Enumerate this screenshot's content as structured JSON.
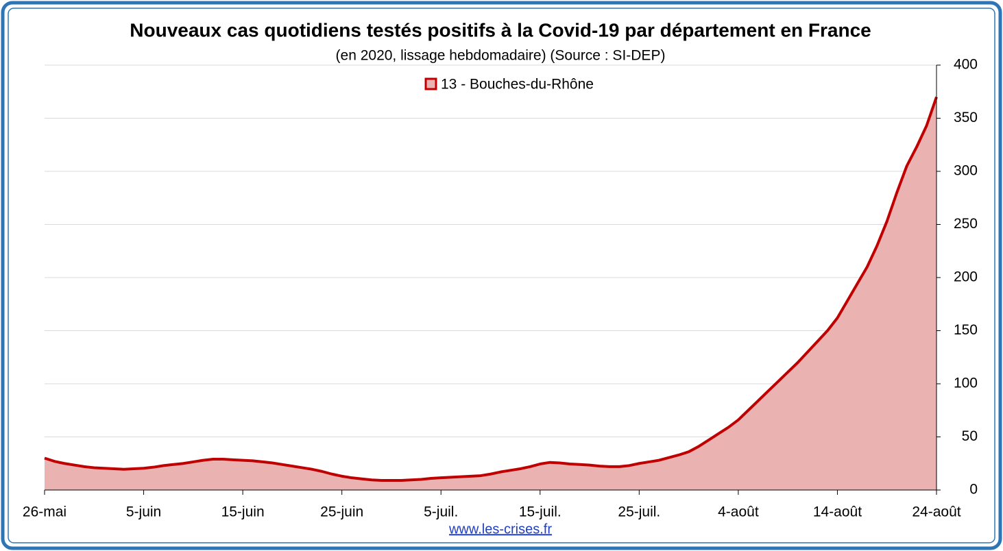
{
  "chart_data": {
    "type": "area",
    "title": "Nouveaux cas quotidiens testés positifs à la Covid-19 par département en France",
    "subtitle": "(en 2020, lissage hebdomadaire) (Source : SI-DEP)",
    "source": "www.les-crises.fr",
    "categories": [
      "26-mai",
      null,
      null,
      null,
      null,
      null,
      null,
      null,
      null,
      null,
      "5-juin",
      null,
      null,
      null,
      null,
      null,
      null,
      null,
      null,
      null,
      "15-juin",
      null,
      null,
      null,
      null,
      null,
      null,
      null,
      null,
      null,
      "25-juin",
      null,
      null,
      null,
      null,
      null,
      null,
      null,
      null,
      null,
      "5-juil.",
      null,
      null,
      null,
      null,
      null,
      null,
      null,
      null,
      null,
      "15-juil.",
      null,
      null,
      null,
      null,
      null,
      null,
      null,
      null,
      null,
      "25-juil.",
      null,
      null,
      null,
      null,
      null,
      null,
      null,
      null,
      null,
      "4-août",
      null,
      null,
      null,
      null,
      null,
      null,
      null,
      null,
      null,
      "14-août",
      null,
      null,
      null,
      null,
      null,
      null,
      null,
      null,
      null,
      "24-août"
    ],
    "series": [
      {
        "name": "13 - Bouches-du-Rhône",
        "color": "#c00000",
        "fill": "#ebb2b2",
        "values": [
          30,
          27,
          25,
          23.5,
          22,
          21,
          20.5,
          20,
          19.5,
          20,
          20.5,
          21.5,
          23,
          24,
          25,
          26.5,
          28,
          29,
          29,
          28.5,
          28,
          27.5,
          26.5,
          25.5,
          24,
          22.5,
          21,
          19.5,
          17.5,
          15,
          13,
          11.5,
          10.5,
          9.5,
          9,
          9,
          9,
          9.5,
          10,
          11,
          11.5,
          12,
          12.5,
          13,
          13.5,
          15,
          17,
          18.5,
          20,
          22,
          24.5,
          26,
          25.5,
          24.5,
          24,
          23.5,
          22.5,
          22,
          22,
          23,
          25,
          26.5,
          28,
          30.5,
          33,
          36,
          41,
          47,
          53,
          59,
          66,
          75,
          84,
          93,
          102,
          111,
          120,
          130,
          140,
          150,
          162,
          178,
          194,
          210,
          230,
          253,
          280,
          305,
          323,
          343,
          370
        ]
      }
    ],
    "ylim": [
      0,
      400
    ],
    "yticks": [
      0,
      50,
      100,
      150,
      200,
      250,
      300,
      350,
      400
    ],
    "grid": true,
    "y_axis_side": "right",
    "legend": "top"
  }
}
